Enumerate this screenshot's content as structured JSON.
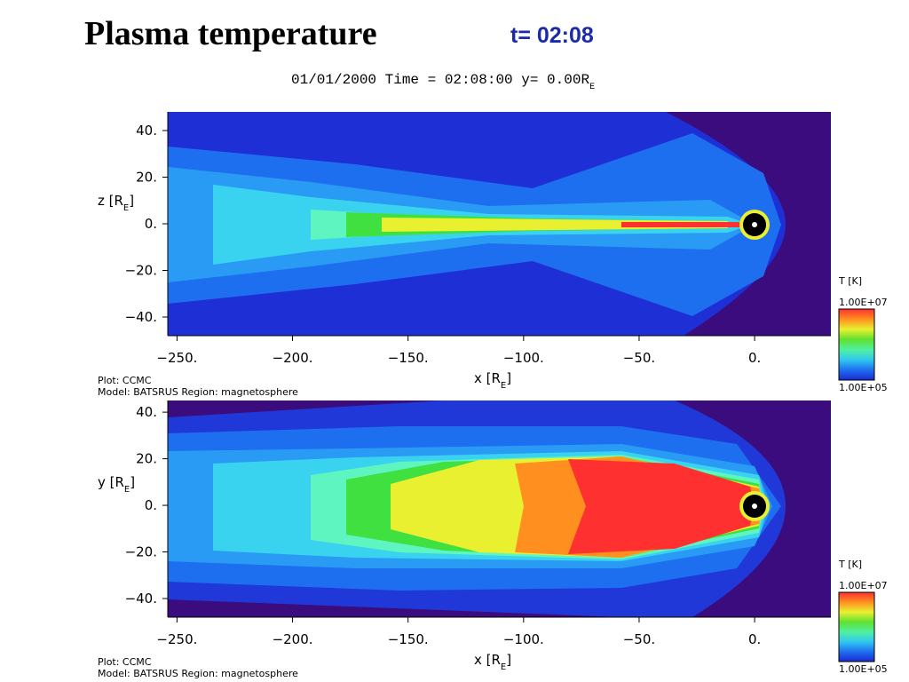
{
  "title": "Plasma temperature",
  "subtitle": "t= 02:08",
  "chart_data": [
    {
      "type": "contour",
      "header_parts": [
        "01/01/2000 Time = 02:08:00 y= 0.00R",
        "E"
      ],
      "xlabel_parts": [
        "x [R",
        "E",
        "]"
      ],
      "ylabel_parts": [
        "z [R",
        "E",
        "]"
      ],
      "xlim": [
        -254,
        33
      ],
      "ylim": [
        -48,
        48
      ],
      "xticks": [
        {
          "value": -250,
          "label": "−250."
        },
        {
          "value": -200,
          "label": "−200."
        },
        {
          "value": -150,
          "label": "−150."
        },
        {
          "value": -100,
          "label": "−100."
        },
        {
          "value": -50,
          "label": "−50."
        },
        {
          "value": 0,
          "label": "0."
        }
      ],
      "yticks": [
        {
          "value": 40,
          "label": "40."
        },
        {
          "value": 20,
          "label": "20."
        },
        {
          "value": 0,
          "label": "0."
        },
        {
          "value": -20,
          "label": "−20."
        },
        {
          "value": -40,
          "label": "−40."
        }
      ],
      "footer": [
        "Plot: CCMC",
        "Model: BATSRUS   Region: magnetosphere"
      ],
      "colorbar": {
        "label": "T [K]",
        "ticks": [
          {
            "value": 100000,
            "label": "1.00E+05"
          },
          {
            "value": 10000000,
            "label": "1.00E+07"
          }
        ],
        "colors": [
          "#1a2ad0",
          "#1f6ff0",
          "#30c8f0",
          "#50f0a0",
          "#60e030",
          "#e8f030",
          "#ff9020",
          "#ff3030"
        ]
      }
    },
    {
      "type": "contour",
      "xlabel_parts": [
        "x [R",
        "E",
        "]"
      ],
      "ylabel_parts": [
        "y [R",
        "E",
        "]"
      ],
      "xlim": [
        -254,
        33
      ],
      "ylim": [
        -48,
        45
      ],
      "xticks": [
        {
          "value": -250,
          "label": "−250."
        },
        {
          "value": -200,
          "label": "−200."
        },
        {
          "value": -150,
          "label": "−150."
        },
        {
          "value": -100,
          "label": "−100."
        },
        {
          "value": -50,
          "label": "−50."
        },
        {
          "value": 0,
          "label": "0."
        }
      ],
      "yticks": [
        {
          "value": 40,
          "label": "40."
        },
        {
          "value": 20,
          "label": "20."
        },
        {
          "value": 0,
          "label": "0."
        },
        {
          "value": -20,
          "label": "−20."
        },
        {
          "value": -40,
          "label": "−40."
        }
      ],
      "footer": [
        "Plot: CCMC",
        "Model: BATSRUS   Region: magnetosphere"
      ],
      "colorbar": {
        "label": "T [K]",
        "ticks": [
          {
            "value": 100000,
            "label": "1.00E+05"
          },
          {
            "value": 10000000,
            "label": "1.00E+07"
          }
        ],
        "colors": [
          "#1a2ad0",
          "#1f6ff0",
          "#30c8f0",
          "#50f0a0",
          "#60e030",
          "#e8f030",
          "#ff9020",
          "#ff3030"
        ]
      }
    }
  ]
}
